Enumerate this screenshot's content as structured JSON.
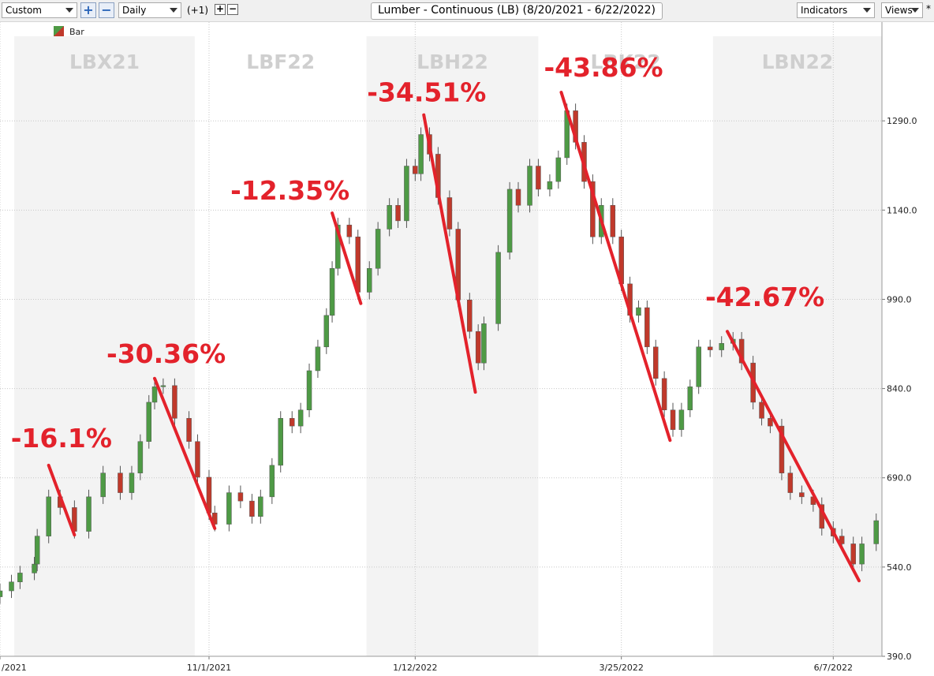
{
  "toolbar": {
    "preset": "Custom",
    "interval": "Daily",
    "offset": "(+1)",
    "indicators": "Indicators",
    "views": "Views",
    "star": "*"
  },
  "chart_data": {
    "type": "candlestick",
    "title": "Lumber - Continuous (LB) (8/20/2021 - 6/22/2022)",
    "xlim": [
      "2021-08-20",
      "2022-06-24"
    ],
    "ylim": [
      390,
      1456
    ],
    "xticks": [
      {
        "value": "2021-08-20",
        "label": "/2021"
      },
      {
        "value": "2021-11-01",
        "label": "11/1/2021"
      },
      {
        "value": "2022-01-12",
        "label": "1/12/2022"
      },
      {
        "value": "2022-03-25",
        "label": "3/25/2022"
      },
      {
        "value": "2022-06-07",
        "label": "6/7/2022"
      }
    ],
    "yticks": [
      {
        "value": 390,
        "label": "390.0"
      },
      {
        "value": 540,
        "label": "540.0"
      },
      {
        "value": 690,
        "label": "690.0"
      },
      {
        "value": 840,
        "label": "840.0"
      },
      {
        "value": 990,
        "label": "990.0"
      },
      {
        "value": 1140,
        "label": "1140.0"
      },
      {
        "value": 1290,
        "label": "1290.0"
      }
    ],
    "grid": true,
    "contracts": [
      {
        "label": "LBX21",
        "start": "2021-08-25",
        "end": "2021-10-27",
        "shaded": true
      },
      {
        "label": "LBF22",
        "start": "2021-10-27",
        "end": "2021-12-26",
        "shaded": false
      },
      {
        "label": "LBH22",
        "start": "2021-12-26",
        "end": "2022-02-24",
        "shaded": true
      },
      {
        "label": "LBK22",
        "start": "2022-02-24",
        "end": "2022-04-26",
        "shaded": false
      },
      {
        "label": "LBN22",
        "start": "2022-04-26",
        "end": "2022-06-24",
        "shaded": true
      }
    ],
    "x": [
      "2021-08-20",
      "2021-08-24",
      "2021-08-27",
      "2021-09-01",
      "2021-09-02",
      "2021-09-06",
      "2021-09-10",
      "2021-09-15",
      "2021-09-20",
      "2021-09-25",
      "2021-10-01",
      "2021-10-05",
      "2021-10-08",
      "2021-10-11",
      "2021-10-13",
      "2021-10-16",
      "2021-10-20",
      "2021-10-25",
      "2021-10-28",
      "2021-11-01",
      "2021-11-03",
      "2021-11-08",
      "2021-11-12",
      "2021-11-16",
      "2021-11-19",
      "2021-11-23",
      "2021-11-26",
      "2021-11-30",
      "2021-12-03",
      "2021-12-06",
      "2021-12-09",
      "2021-12-12",
      "2021-12-14",
      "2021-12-16",
      "2021-12-20",
      "2021-12-23",
      "2021-12-27",
      "2021-12-30",
      "2022-01-03",
      "2022-01-06",
      "2022-01-09",
      "2022-01-12",
      "2022-01-14",
      "2022-01-17",
      "2022-01-20",
      "2022-01-24",
      "2022-01-27",
      "2022-01-31",
      "2022-02-03",
      "2022-02-05",
      "2022-02-10",
      "2022-02-14",
      "2022-02-17",
      "2022-02-21",
      "2022-02-24",
      "2022-02-28",
      "2022-03-03",
      "2022-03-06",
      "2022-03-09",
      "2022-03-12",
      "2022-03-15",
      "2022-03-18",
      "2022-03-22",
      "2022-03-25",
      "2022-03-28",
      "2022-03-31",
      "2022-04-03",
      "2022-04-06",
      "2022-04-09",
      "2022-04-12",
      "2022-04-15",
      "2022-04-18",
      "2022-04-21",
      "2022-04-25",
      "2022-04-29",
      "2022-05-03",
      "2022-05-06",
      "2022-05-10",
      "2022-05-13",
      "2022-05-16",
      "2022-05-20",
      "2022-05-23",
      "2022-05-27",
      "2022-05-31",
      "2022-06-03",
      "2022-06-07",
      "2022-06-10",
      "2022-06-14",
      "2022-06-17",
      "2022-06-22"
    ],
    "series": [
      {
        "name": "Bar",
        "up_color": "#4e9a45",
        "down_color": "#c0392b",
        "open": [
          490,
          500,
          515,
          530,
          545,
          592,
          658,
          640,
          600,
          658,
          698,
          665,
          698,
          751,
          817,
          843,
          845,
          790,
          751,
          691,
          631,
          612,
          665,
          651,
          625,
          658,
          711,
          790,
          777,
          804,
          870,
          910,
          963,
          1042,
          1115,
          1095,
          1002,
          1042,
          1108,
          1148,
          1122,
          1214,
          1201,
          1267,
          1234,
          1161,
          1108,
          989,
          936,
          883,
          949,
          1069,
          1175,
          1148,
          1214,
          1175,
          1188,
          1228,
          1307,
          1254,
          1188,
          1095,
          1148,
          1095,
          1016,
          963,
          976,
          910,
          857,
          804,
          771,
          804,
          843,
          910,
          905,
          916,
          923,
          883,
          817,
          790,
          777,
          698,
          665,
          658,
          645,
          605,
          592,
          579,
          545,
          579
        ],
        "high": [
          512,
          527,
          542,
          557,
          604,
          670,
          670,
          652,
          670,
          710,
          710,
          710,
          763,
          829,
          855,
          857,
          857,
          802,
          763,
          703,
          643,
          677,
          677,
          663,
          670,
          723,
          802,
          802,
          816,
          882,
          922,
          975,
          1054,
          1127,
          1127,
          1107,
          1054,
          1120,
          1160,
          1160,
          1226,
          1226,
          1279,
          1279,
          1246,
          1173,
          1120,
          1001,
          948,
          961,
          1081,
          1187,
          1187,
          1226,
          1226,
          1200,
          1240,
          1319,
          1319,
          1266,
          1200,
          1160,
          1160,
          1107,
          1028,
          988,
          988,
          922,
          869,
          816,
          816,
          855,
          922,
          922,
          928,
          935,
          935,
          895,
          829,
          802,
          789,
          710,
          677,
          670,
          657,
          617,
          604,
          591,
          591,
          630
        ],
        "low": [
          478,
          488,
          503,
          518,
          533,
          580,
          628,
          588,
          588,
          646,
          653,
          653,
          686,
          739,
          805,
          831,
          778,
          739,
          679,
          619,
          600,
          600,
          639,
          613,
          613,
          646,
          699,
          765,
          765,
          792,
          858,
          898,
          951,
          1030,
          1083,
          990,
          990,
          1030,
          1096,
          1110,
          1110,
          1189,
          1189,
          1222,
          1149,
          1096,
          977,
          924,
          871,
          871,
          937,
          1057,
          1136,
          1136,
          1163,
          1163,
          1176,
          1216,
          1242,
          1176,
          1083,
          1083,
          1083,
          1004,
          951,
          951,
          898,
          845,
          792,
          759,
          759,
          792,
          831,
          893,
          893,
          904,
          871,
          805,
          778,
          765,
          686,
          653,
          646,
          633,
          593,
          580,
          567,
          533,
          533,
          567
        ],
        "close": [
          500,
          515,
          530,
          545,
          592,
          658,
          640,
          600,
          658,
          698,
          665,
          698,
          751,
          817,
          843,
          845,
          790,
          751,
          691,
          631,
          612,
          665,
          651,
          625,
          658,
          711,
          790,
          777,
          804,
          870,
          910,
          963,
          1042,
          1115,
          1095,
          1002,
          1042,
          1108,
          1148,
          1122,
          1214,
          1201,
          1267,
          1234,
          1161,
          1108,
          989,
          936,
          883,
          949,
          1069,
          1175,
          1148,
          1214,
          1175,
          1188,
          1228,
          1307,
          1254,
          1188,
          1095,
          1148,
          1095,
          1016,
          963,
          976,
          910,
          857,
          804,
          771,
          804,
          843,
          910,
          905,
          916,
          923,
          883,
          817,
          790,
          777,
          698,
          665,
          658,
          645,
          605,
          592,
          579,
          545,
          579,
          618
        ]
      }
    ],
    "annotations": [
      {
        "text": "-16.1%",
        "start": {
          "x": "2021-09-06",
          "y": 711
        },
        "end": {
          "x": "2021-09-15",
          "y": 594
        }
      },
      {
        "text": "-30.36%",
        "start": {
          "x": "2021-10-13",
          "y": 857
        },
        "end": {
          "x": "2021-11-03",
          "y": 605
        }
      },
      {
        "text": "-12.35%",
        "start": {
          "x": "2021-12-14",
          "y": 1135
        },
        "end": {
          "x": "2021-12-24",
          "y": 983
        }
      },
      {
        "text": "-34.51%",
        "start": {
          "x": "2022-01-15",
          "y": 1300
        },
        "end": {
          "x": "2022-02-02",
          "y": 834
        }
      },
      {
        "text": "-43.86%",
        "start": {
          "x": "2022-03-04",
          "y": 1338
        },
        "end": {
          "x": "2022-04-11",
          "y": 753
        }
      },
      {
        "text": "-42.67%",
        "start": {
          "x": "2022-05-01",
          "y": 936
        },
        "end": {
          "x": "2022-06-16",
          "y": 517
        }
      }
    ],
    "annotation_color": "#e3222b"
  }
}
